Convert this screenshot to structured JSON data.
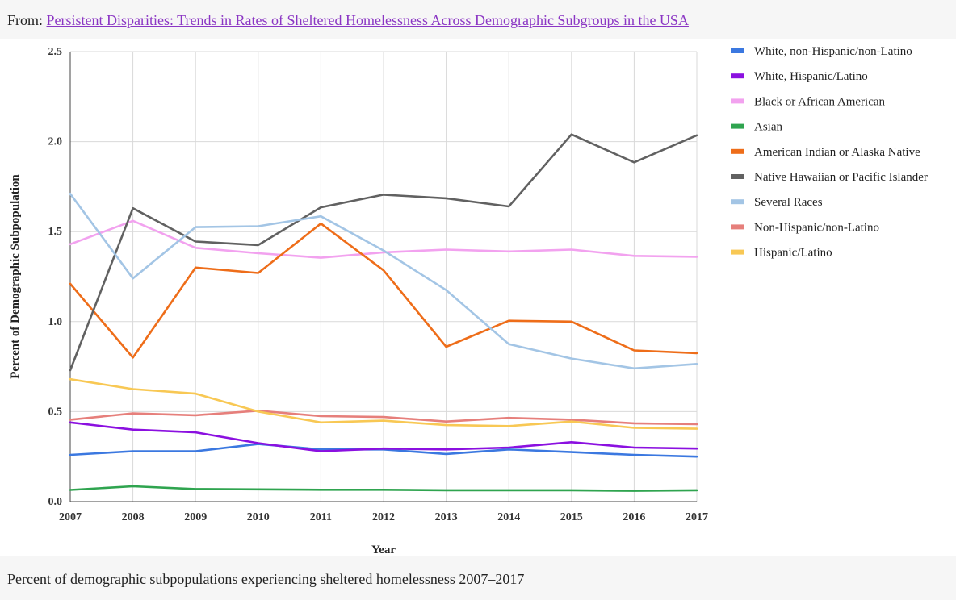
{
  "source": {
    "prefix": "From:",
    "link_text": "Persistent Disparities: Trends in Rates of Sheltered Homelessness Across Demographic Subgroups in the USA"
  },
  "caption": "Percent of demographic subpopulations experiencing sheltered homelessness 2007–2017",
  "chart_data": {
    "type": "line",
    "title": "",
    "xlabel": "Year",
    "ylabel": "Percent of Demographic Subpopulation",
    "x": [
      2007,
      2008,
      2009,
      2010,
      2011,
      2012,
      2013,
      2014,
      2015,
      2016,
      2017
    ],
    "ylim": [
      0,
      2.5
    ],
    "yticks": [
      "0.0",
      "0.5",
      "1.0",
      "1.5",
      "2.0",
      "2.5"
    ],
    "grid": true,
    "legend_position": "right",
    "series": [
      {
        "name": "White, non-Hispanic/non-Latino",
        "color": "#3b78e0",
        "values": [
          0.26,
          0.28,
          0.28,
          0.32,
          0.29,
          0.29,
          0.265,
          0.29,
          0.275,
          0.26,
          0.25
        ]
      },
      {
        "name": "White, Hispanic/Latino",
        "color": "#8b10e0",
        "values": [
          0.44,
          0.4,
          0.385,
          0.325,
          0.28,
          0.295,
          0.29,
          0.3,
          0.33,
          0.3,
          0.295
        ]
      },
      {
        "name": "Black or African American",
        "color": "#f2a2ef",
        "values": [
          1.43,
          1.56,
          1.41,
          1.38,
          1.355,
          1.385,
          1.4,
          1.39,
          1.4,
          1.365,
          1.36
        ]
      },
      {
        "name": "Asian",
        "color": "#2fa44f",
        "values": [
          0.065,
          0.085,
          0.07,
          0.068,
          0.066,
          0.066,
          0.063,
          0.063,
          0.063,
          0.06,
          0.063
        ]
      },
      {
        "name": "American Indian or Alaska Native",
        "color": "#ee6d19",
        "values": [
          1.21,
          0.8,
          1.3,
          1.27,
          1.545,
          1.285,
          0.86,
          1.005,
          1.0,
          0.84,
          0.825
        ]
      },
      {
        "name": "Native Hawaiian or Pacific Islander",
        "color": "#616161",
        "values": [
          0.73,
          1.63,
          1.445,
          1.425,
          1.635,
          1.705,
          1.685,
          1.64,
          2.04,
          1.885,
          2.035
        ]
      },
      {
        "name": "Several Races",
        "color": "#a3c5e5",
        "values": [
          1.71,
          1.24,
          1.525,
          1.53,
          1.585,
          1.395,
          1.175,
          0.875,
          0.795,
          0.74,
          0.765
        ]
      },
      {
        "name": "Non-Hispanic/non-Latino",
        "color": "#e67f7b",
        "values": [
          0.455,
          0.49,
          0.48,
          0.505,
          0.475,
          0.47,
          0.445,
          0.465,
          0.455,
          0.435,
          0.43
        ]
      },
      {
        "name": "Hispanic/Latino",
        "color": "#f8c854",
        "values": [
          0.68,
          0.625,
          0.6,
          0.5,
          0.44,
          0.45,
          0.425,
          0.42,
          0.445,
          0.41,
          0.405
        ]
      }
    ]
  }
}
